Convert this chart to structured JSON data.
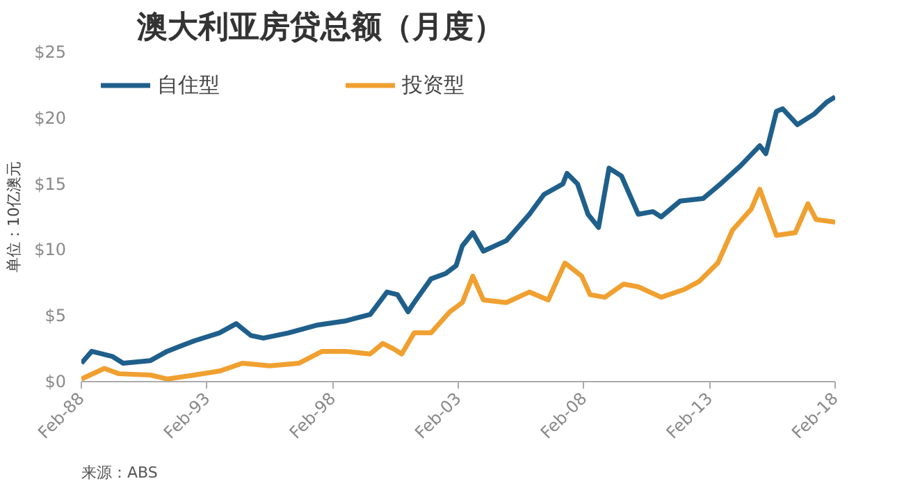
{
  "chart_data": {
    "type": "line",
    "title": "澳大利亚房贷总额（月度）",
    "ylabel": "单位：10亿澳元",
    "annotations": [
      "来源：ABS"
    ],
    "xlim": [
      "1988-02",
      "2018-02"
    ],
    "xticks": [
      {
        "value": "1988-02",
        "label": "Feb-88"
      },
      {
        "value": "1993-02",
        "label": "Feb-93"
      },
      {
        "value": "1998-02",
        "label": "Feb-98"
      },
      {
        "value": "2003-02",
        "label": "Feb-03"
      },
      {
        "value": "2008-02",
        "label": "Feb-08"
      },
      {
        "value": "2013-02",
        "label": "Feb-13"
      },
      {
        "value": "2018-02",
        "label": "Feb-18"
      }
    ],
    "ylim": [
      0,
      25
    ],
    "yticks": [
      {
        "value": 0,
        "label": "$0"
      },
      {
        "value": 5,
        "label": "$5"
      },
      {
        "value": 10,
        "label": "$10"
      },
      {
        "value": 15,
        "label": "$15"
      },
      {
        "value": 20,
        "label": "$20"
      },
      {
        "value": 25,
        "label": "$25"
      }
    ],
    "grid": false,
    "legend": "top left",
    "marker": "none",
    "line_style": "solid",
    "series": [
      {
        "name": "自住型",
        "color": "#1f5f8b",
        "x": [
          "1988-02",
          "1988-07",
          "1989-05",
          "1989-10",
          "1990-11",
          "1991-07",
          "1992-08",
          "1993-08",
          "1994-04",
          "1994-11",
          "1995-05",
          "1996-05",
          "1997-07",
          "1998-08",
          "1999-08",
          "2000-04",
          "2000-09",
          "2001-02",
          "2001-05",
          "2002-01",
          "2002-08",
          "2003-01",
          "2003-04",
          "2003-09",
          "2004-02",
          "2005-01",
          "2005-12",
          "2006-07",
          "2007-04",
          "2007-06",
          "2007-11",
          "2008-04",
          "2008-09",
          "2009-02",
          "2009-08",
          "2010-04",
          "2010-11",
          "2011-03",
          "2011-12",
          "2012-11",
          "2013-08",
          "2014-05",
          "2015-02",
          "2015-05",
          "2015-10",
          "2016-01",
          "2016-08",
          "2017-04",
          "2017-10",
          "2018-02"
        ],
        "values": [
          1.4,
          2.3,
          1.9,
          1.4,
          1.6,
          2.3,
          3.1,
          3.7,
          4.4,
          3.5,
          3.3,
          3.7,
          4.3,
          4.6,
          5.1,
          6.8,
          6.6,
          5.3,
          6.0,
          7.8,
          8.2,
          8.8,
          10.3,
          11.3,
          9.9,
          10.7,
          12.7,
          14.2,
          15.0,
          15.8,
          15.0,
          12.7,
          11.7,
          16.2,
          15.6,
          12.7,
          12.9,
          12.5,
          13.7,
          13.9,
          15.1,
          16.4,
          17.9,
          17.3,
          20.5,
          20.7,
          19.5,
          20.3,
          21.2,
          21.6
        ]
      },
      {
        "name": "投资型",
        "color": "#f0a030",
        "x": [
          "1988-02",
          "1989-01",
          "1989-08",
          "1990-11",
          "1991-07",
          "1992-08",
          "1993-08",
          "1994-07",
          "1995-08",
          "1996-10",
          "1997-09",
          "1998-08",
          "1999-08",
          "2000-02",
          "2000-07",
          "2000-11",
          "2001-05",
          "2002-01",
          "2002-10",
          "2003-04",
          "2003-09",
          "2004-02",
          "2005-01",
          "2005-12",
          "2006-09",
          "2007-05",
          "2008-01",
          "2008-05",
          "2008-12",
          "2009-09",
          "2010-04",
          "2011-03",
          "2012-02",
          "2012-09",
          "2013-06",
          "2014-01",
          "2014-10",
          "2015-02",
          "2015-10",
          "2016-07",
          "2017-01",
          "2017-05",
          "2018-02"
        ],
        "values": [
          0.2,
          1.0,
          0.6,
          0.5,
          0.2,
          0.5,
          0.8,
          1.4,
          1.2,
          1.4,
          2.3,
          2.3,
          2.1,
          2.9,
          2.5,
          2.1,
          3.7,
          3.7,
          5.3,
          6.0,
          8.0,
          6.2,
          6.0,
          6.8,
          6.2,
          9.0,
          8.0,
          6.6,
          6.4,
          7.4,
          7.2,
          6.4,
          7.0,
          7.6,
          9.0,
          11.5,
          13.1,
          14.6,
          11.1,
          11.3,
          13.5,
          12.3,
          12.1
        ]
      }
    ]
  }
}
